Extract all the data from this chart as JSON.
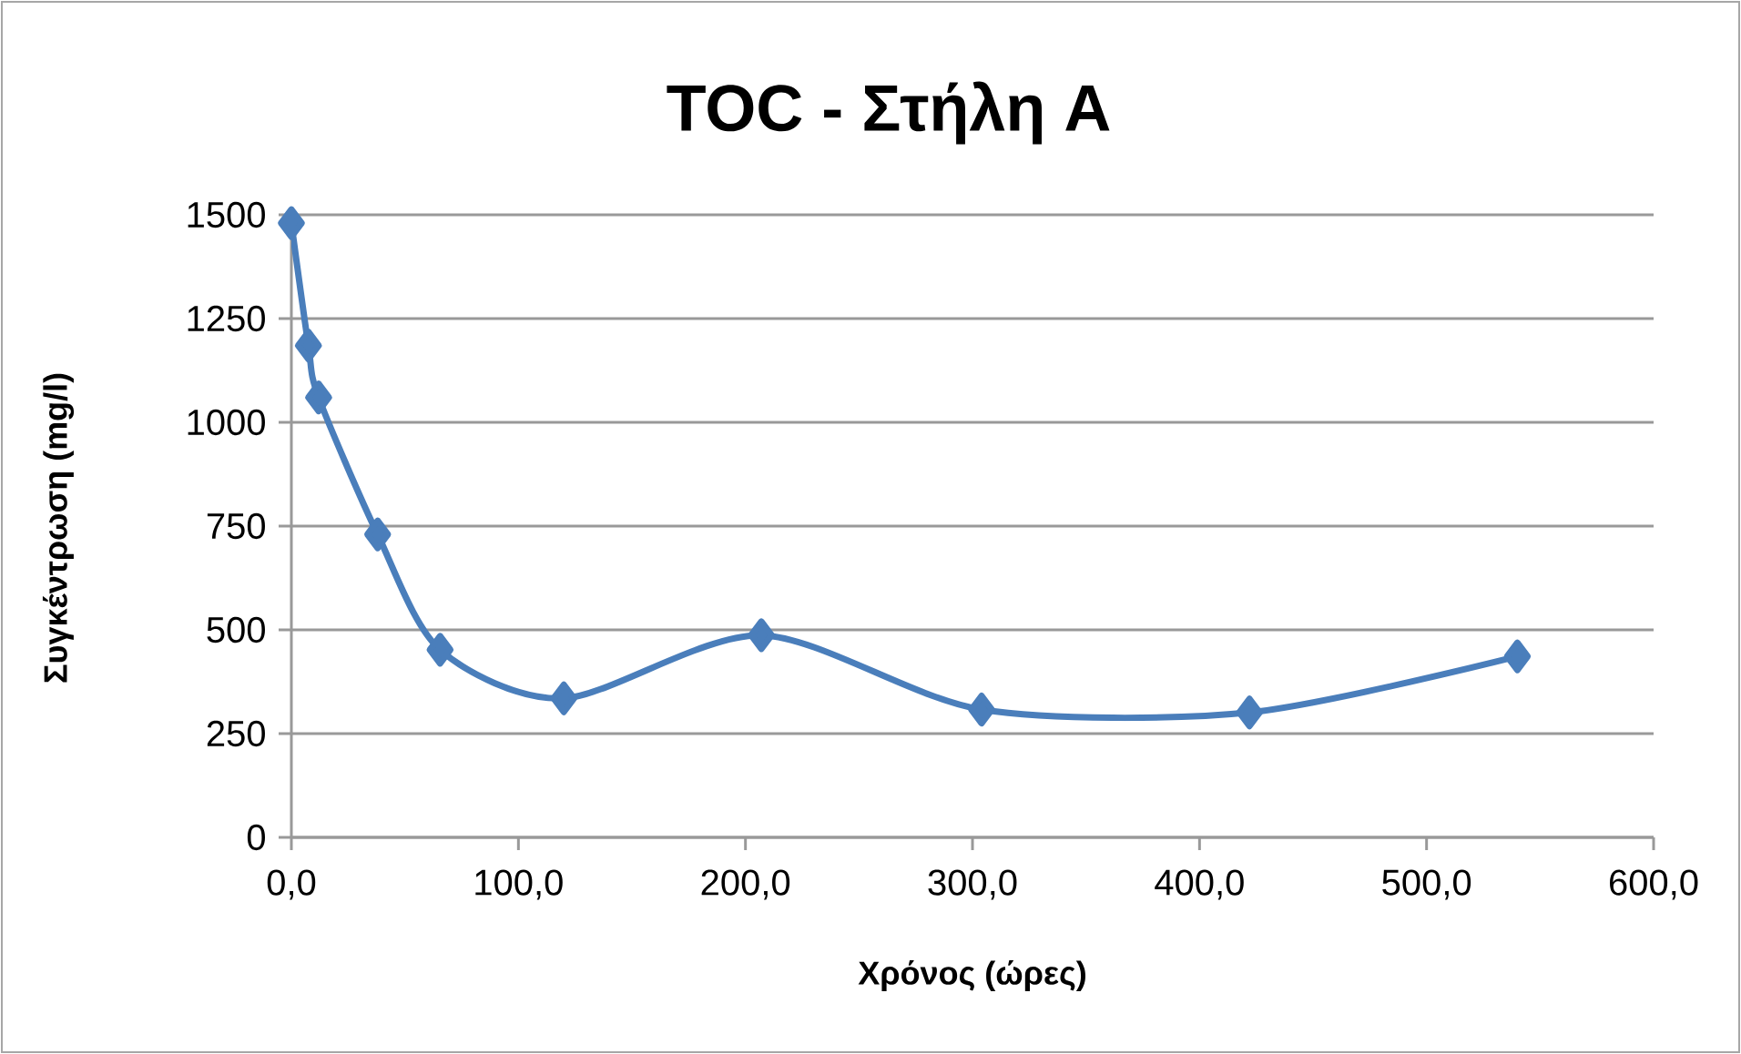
{
  "chart_data": {
    "type": "line",
    "title": "TOC - Στήλη Α",
    "xlabel": "Χρόνος (ώρες)",
    "ylabel": "Συγκέντρωση (mg/l)",
    "x": [
      0,
      7.5,
      12,
      38,
      65.5,
      120,
      207,
      304,
      422,
      540
    ],
    "series": [
      {
        "color": "#4a7ebb",
        "values": [
          1480,
          1185,
          1060,
          730,
          452,
          335,
          487,
          308,
          301,
          436
        ]
      }
    ],
    "xlim": [
      0,
      600
    ],
    "xticks": [
      {
        "value": 0,
        "label": "0,0"
      },
      {
        "value": 100,
        "label": "100,0"
      },
      {
        "value": 200,
        "label": "200,0"
      },
      {
        "value": 300,
        "label": "300,0"
      },
      {
        "value": 400,
        "label": "400,0"
      },
      {
        "value": 500,
        "label": "500,0"
      },
      {
        "value": 600,
        "label": "600,0"
      }
    ],
    "ylim": [
      0,
      1500
    ],
    "yticks": [
      0,
      250,
      500,
      750,
      1000,
      1250,
      1500
    ],
    "grid": "y",
    "legend": false,
    "marker": "diamond",
    "line_style": "solid"
  }
}
